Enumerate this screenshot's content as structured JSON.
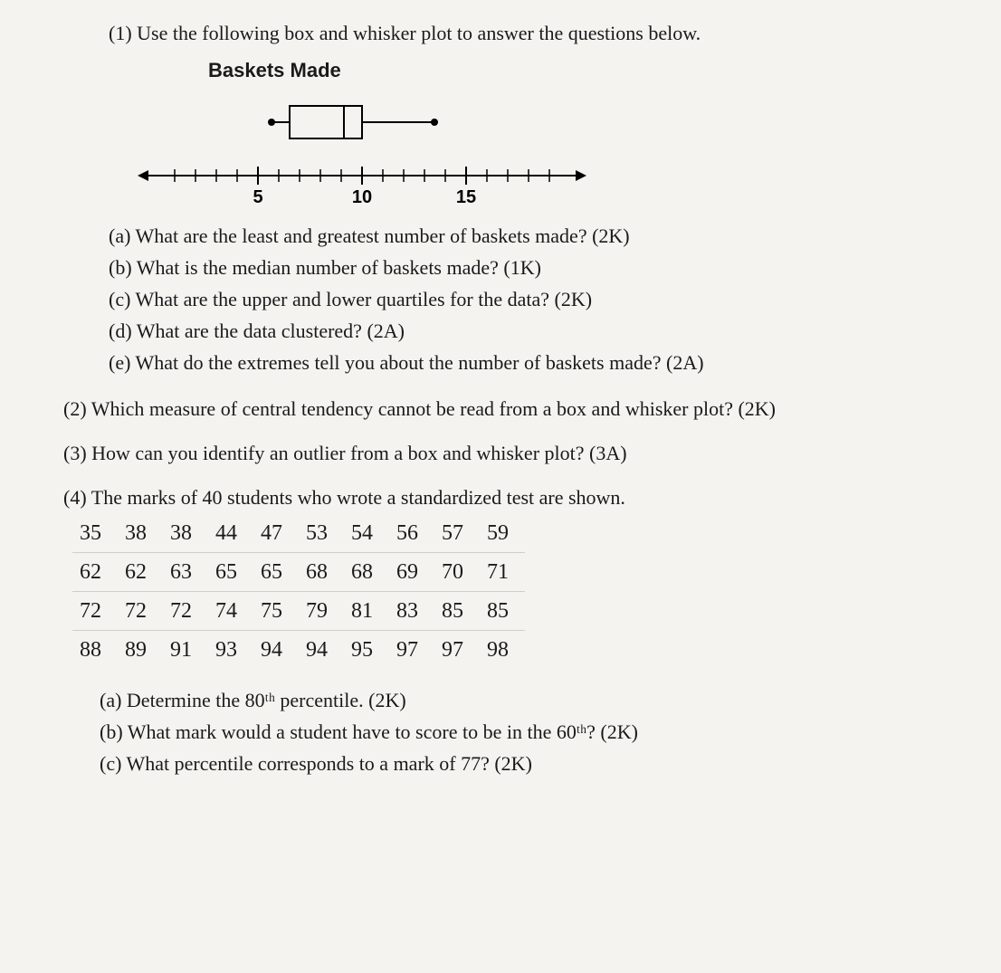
{
  "q1": {
    "intro": "(1) Use the following box and whisker plot to answer the questions below.",
    "plot_title": "Baskets Made",
    "boxplot": {
      "min": 5,
      "q1_val": 6,
      "median": 9,
      "q3_val": 10,
      "max": 14,
      "axis_min": 0,
      "axis_max": 20,
      "ticks": [
        {
          "v": 5,
          "l": "5"
        },
        {
          "v": 10,
          "l": "10"
        },
        {
          "v": 15,
          "l": "15"
        }
      ],
      "line_color": "#000000",
      "box_border": "#000000",
      "dot_color": "#000000"
    },
    "a": "(a) What are the least and greatest number of baskets made?  (2K)",
    "b": "(b) What is the median number of baskets made? (1K)",
    "c": "(c) What are the upper and lower quartiles for the data?  (2K)",
    "d": "(d) What are the data clustered?  (2A)",
    "e": "(e) What do the extremes tell you about the number of baskets made?  (2A)"
  },
  "q2": "(2) Which measure of central tendency cannot be read from a box and whisker plot?  (2K)",
  "q3": "(3) How can you identify an outlier from a box and whisker plot?  (3A)",
  "q4": {
    "intro": "(4) The marks of 40 students who wrote a standardized test are shown.",
    "rows": [
      [
        35,
        38,
        38,
        44,
        47,
        53,
        54,
        56,
        57,
        59
      ],
      [
        62,
        62,
        63,
        65,
        65,
        68,
        68,
        69,
        70,
        71
      ],
      [
        72,
        72,
        72,
        74,
        75,
        79,
        81,
        83,
        85,
        85
      ],
      [
        88,
        89,
        91,
        93,
        94,
        94,
        95,
        97,
        97,
        98
      ]
    ],
    "a": "(a) Determine the 80ᵗʰ percentile.  (2K)",
    "b": "(b) What mark would a student have to score to be in the 60ᵗʰ?  (2K)",
    "c": "(c) What percentile corresponds to a mark of 77?  (2K)"
  }
}
